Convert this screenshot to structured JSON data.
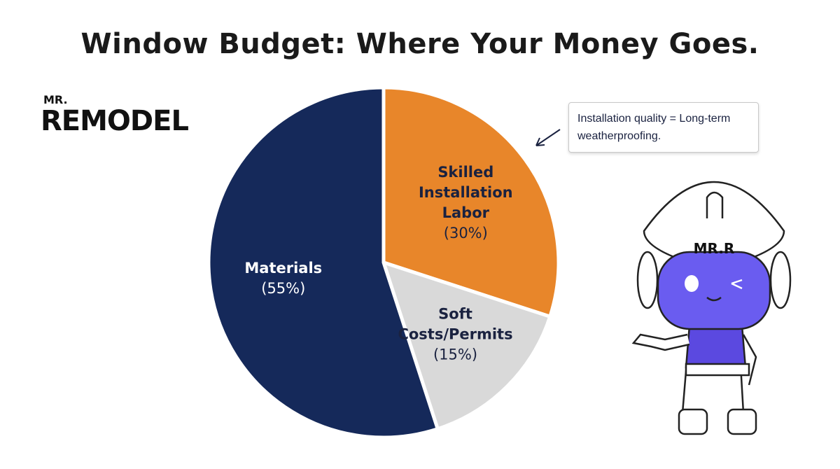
{
  "chart_data": {
    "type": "pie",
    "title": "Window Budget: Where Your Money Goes.",
    "categories": [
      "Skilled Installation Labor",
      "Soft Costs/Permits",
      "Materials"
    ],
    "values": [
      30,
      15,
      55
    ],
    "value_labels": [
      "(30%)",
      "(15%)",
      "(55%)"
    ],
    "colors": [
      "#e8862a",
      "#d9d9d9",
      "#15295a"
    ],
    "label_colors": [
      "#1a2240",
      "#1a2240",
      "#ffffff"
    ],
    "annotation": "Installation quality = Long-term weatherproofing."
  },
  "logo": {
    "top": "MR.",
    "main": "REMODEL"
  },
  "mascot": {
    "helmet_label": "MR.R"
  }
}
